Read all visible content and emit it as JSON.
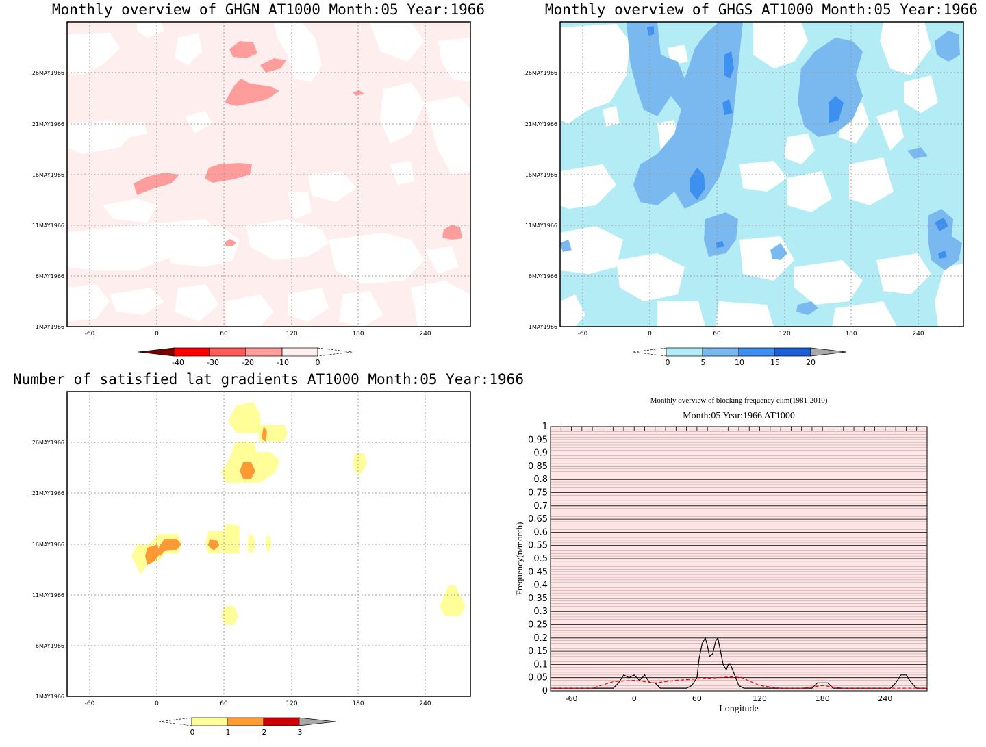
{
  "panels": {
    "ghgn": {
      "title": "Monthly overview of GHGN AT1000 Month:05 Year:1966",
      "colorbar_labels": [
        "-40",
        "-30",
        "-20",
        "-10",
        "0"
      ],
      "colors": {
        "c1": "#ffeeee",
        "c2": "#ff9c9c",
        "c3": "#ff5b5b",
        "c4": "#ff0000",
        "c5": "#7a0000"
      }
    },
    "ghgs": {
      "title": "Monthly overview of GHGS AT1000 Month:05 Year:1966",
      "colorbar_labels": [
        "0",
        "5",
        "10",
        "15",
        "20"
      ],
      "colors": {
        "c1": "#b4ecf6",
        "c2": "#7ab8f0",
        "c3": "#3d8ff0",
        "c4": "#1c5fd6",
        "c5": "#a8a8a8"
      }
    },
    "grad": {
      "title": "Number of satisfied lat gradients AT1000 Month:05 Year:1966",
      "colorbar_labels": [
        "0",
        "1",
        "2",
        "3"
      ],
      "colors": {
        "c1": "#fffe99",
        "c2": "#fe9933",
        "c3": "#cc0000",
        "c4": "#a8a8a8"
      }
    }
  },
  "axes": {
    "x_ticks": [
      "-60",
      "0",
      "60",
      "120",
      "180",
      "240"
    ],
    "y_ticks": [
      "1MAY1966",
      "6MAY1966",
      "11MAY1966",
      "16MAY1966",
      "21MAY1966",
      "26MAY1966"
    ]
  },
  "chart_data": [
    {
      "type": "heatmap",
      "title": "Monthly overview of GHGN AT1000 Month:05 Year:1966",
      "x_range": [
        -80,
        280
      ],
      "x_ticks": [
        -60,
        0,
        60,
        120,
        180,
        240
      ],
      "y_ticks": [
        "1MAY1966",
        "6MAY1966",
        "11MAY1966",
        "16MAY1966",
        "21MAY1966",
        "26MAY1966"
      ],
      "levels": [
        -40,
        -30,
        -20,
        -10,
        0
      ]
    },
    {
      "type": "heatmap",
      "title": "Monthly overview of GHGS AT1000 Month:05 Year:1966",
      "x_range": [
        -80,
        280
      ],
      "x_ticks": [
        -60,
        0,
        60,
        120,
        180,
        240
      ],
      "y_ticks": [
        "1MAY1966",
        "6MAY1966",
        "11MAY1966",
        "16MAY1966",
        "21MAY1966",
        "26MAY1966"
      ],
      "levels": [
        0,
        5,
        10,
        15,
        20
      ]
    },
    {
      "type": "heatmap",
      "title": "Number of satisfied lat gradients AT1000 Month:05 Year:1966",
      "x_range": [
        -80,
        280
      ],
      "x_ticks": [
        -60,
        0,
        60,
        120,
        180,
        240
      ],
      "y_ticks": [
        "1MAY1966",
        "6MAY1966",
        "11MAY1966",
        "16MAY1966",
        "21MAY1966",
        "26MAY1966"
      ],
      "levels": [
        0,
        1,
        2,
        3
      ]
    },
    {
      "type": "line",
      "title": "Monthly overview of blocking frequency clim(1981-2010)",
      "subtitle": "Month:05 Year:1966  AT1000",
      "xlabel": "Longitude",
      "ylabel": "Frequency(n/month)",
      "xlim": [
        -80,
        280
      ],
      "ylim": [
        0,
        1
      ],
      "x_ticks": [
        "-60",
        "0",
        "60",
        "120",
        "180",
        "240"
      ],
      "y_ticks": [
        "0",
        "0.05",
        "0.1",
        "0.15",
        "0.2",
        "0.25",
        "0.3",
        "0.35",
        "0.4",
        "0.45",
        "0.5",
        "0.55",
        "0.6",
        "0.65",
        "0.7",
        "0.75",
        "0.8",
        "0.85",
        "0.9",
        "0.95",
        "1"
      ],
      "series": [
        {
          "color": "#000000",
          "style": "solid",
          "x": [
            -80,
            -20,
            -15,
            -10,
            -5,
            0,
            5,
            10,
            15,
            20,
            25,
            30,
            50,
            55,
            60,
            62,
            65,
            68,
            70,
            72,
            75,
            78,
            80,
            82,
            85,
            88,
            90,
            92,
            95,
            100,
            105,
            110,
            115,
            120,
            170,
            175,
            180,
            185,
            190,
            245,
            250,
            255,
            260,
            265,
            270,
            280
          ],
          "y": [
            0.01,
            0.01,
            0.03,
            0.06,
            0.05,
            0.06,
            0.04,
            0.06,
            0.03,
            0.03,
            0.01,
            0.01,
            0.01,
            0.02,
            0.05,
            0.12,
            0.18,
            0.2,
            0.17,
            0.13,
            0.14,
            0.19,
            0.2,
            0.16,
            0.1,
            0.08,
            0.1,
            0.1,
            0.07,
            0.02,
            0.01,
            0.01,
            0.01,
            0.01,
            0.01,
            0.03,
            0.03,
            0.03,
            0.01,
            0.01,
            0.03,
            0.06,
            0.06,
            0.03,
            0.01,
            0.01
          ]
        },
        {
          "color": "#ff0000",
          "style": "dashed",
          "x": [
            -80,
            -40,
            -20,
            0,
            20,
            40,
            60,
            80,
            100,
            120,
            140,
            160,
            180,
            200,
            220,
            240,
            260,
            280
          ],
          "y": [
            0.01,
            0.01,
            0.035,
            0.04,
            0.03,
            0.04,
            0.045,
            0.05,
            0.055,
            0.02,
            0.01,
            0.01,
            0.02,
            0.01,
            0.01,
            0.01,
            0.01,
            0.01
          ]
        }
      ]
    }
  ]
}
